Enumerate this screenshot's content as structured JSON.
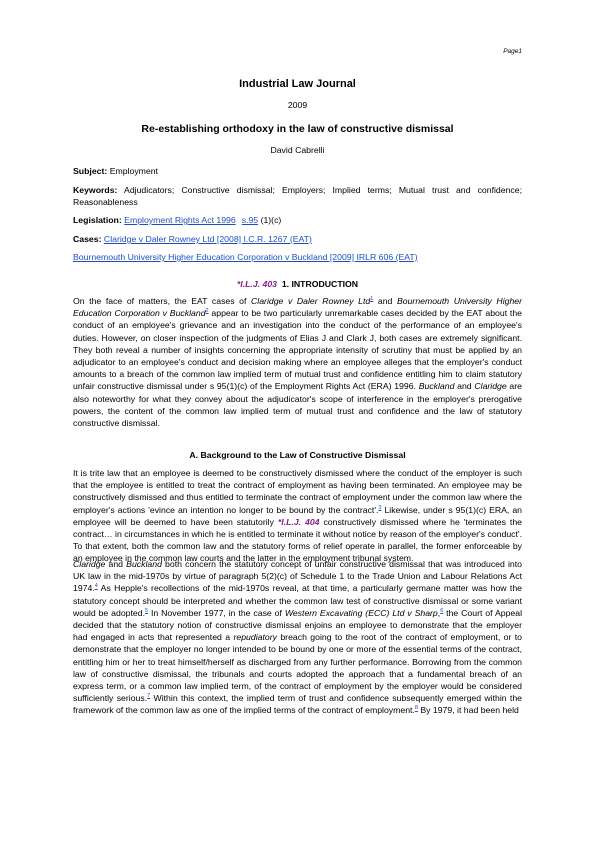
{
  "header": {
    "page": "Page1"
  },
  "title": "Industrial Law Journal",
  "year": "2009",
  "article_title": "Re-establishing orthodoxy in the law of constructive dismissal",
  "author": "David Cabrelli",
  "meta": {
    "subject": {
      "label": "Subject:",
      "value": "Employment"
    },
    "keywords": {
      "label": "Keywords:",
      "value": "Adjudicators; Constructive dismissal; Employers; Implied terms; Mutual trust and confidence; Reasonableness"
    },
    "legislation": {
      "label": "Legislation:",
      "links": [
        "Employment Rights Act 1996",
        "s.95"
      ],
      "value": "(1)(c)"
    },
    "cases": {
      "label": "Cases:",
      "links": [
        "Claridge v Daler Rowney Ltd [2008] I.C.R. 1267 (EAT)",
        "Bournemouth University Higher Education Corporation v Buckland [2009] IRLR 606 (EAT)"
      ]
    }
  },
  "sections": [
    {
      "marker": "*I.L.J. 403",
      "heading": "1. INTRODUCTION",
      "paragraphs": [
        [
          "On the face of matters, the EAT cases of ",
          {
            "text": "Claridge v Daler Rowney Ltd",
            "style": "italic"
          },
          {
            "text": "1",
            "style": "sup"
          },
          " and ",
          {
            "text": "Bournemouth University Higher Education Corporation v Buckland",
            "style": "italic"
          },
          {
            "text": "2",
            "style": "sup"
          },
          " appear to be two particularly unremarkable cases decided by the EAT about the conduct of an employee's grievance and an investigation into the conduct of the performance of an employee's duties. However, on closer inspection of the judgments of Elias J and Clark J, both cases are extremely significant. They both reveal a number of insights concerning the appropriate intensity of scrutiny that must be applied by an adjudicator to an employee's conduct and decision making where an employee alleges that the employer's conduct amounts to a breach of the common law implied term of mutual trust and confidence entitling him to claim statutory unfair constructive dismissal under s 95(1)(c) of the Employment Rights Act (ERA) 1996. ",
          {
            "text": "Buckland",
            "style": "italic"
          },
          " and ",
          {
            "text": "Claridge",
            "style": "italic"
          },
          " are also noteworthy for what they convey about the adjudicator's scope of interference in the employer's prerogative powers, the content of the common law implied term of mutual trust and confidence and the law of statutory constructive dismissal."
        ]
      ]
    },
    {
      "heading": "A. Background to the Law of Constructive Dismissal",
      "paragraphs": [
        [
          "It is trite law that an employee is deemed to be constructively dismissed where the conduct of the employer is such that the employee is entitled to treat the contract of employment as having been terminated. An employee may be constructively dismissed and thus entitled to terminate the contract of employment under the common law where the employer's actions 'evince an intention no longer to be bound by the contract'.",
          {
            "text": "3",
            "style": "sup"
          },
          " Likewise, under s 95(1)(c) ERA, an employee will be deemed to have been statutorily ",
          {
            "text": "*I.L.J. 404",
            "style": "marker"
          },
          " constructively dismissed where he 'terminates the contract… in circumstances in which he is entitled to terminate it without notice by reason of the employer's conduct'. To that extent, both the common law and the statutory forms of relief operate in parallel, the former enforceable by an employee in the common law courts and the latter in the employment tribunal system."
        ],
        [
          {
            "text": "Claridge",
            "style": "italic"
          },
          " and ",
          {
            "text": "Buckland",
            "style": "italic"
          },
          " both concern the statutory concept of unfair constructive dismissal that was introduced into UK law in the mid-1970s by virtue of paragraph 5(2)(c) of Schedule 1 to the Trade Union and Labour Relations Act 1974.",
          {
            "text": "4",
            "style": "sup"
          },
          " As Hepple's recollections of the mid-1970s reveal, at that time, a particularly germane matter was how the statutory concept should be interpreted and whether the common law test of constructive dismissal or some variant would be adopted.",
          {
            "text": "5",
            "style": "sup"
          },
          " In November 1977, in the case of ",
          {
            "text": "Western Excavating (ECC) Ltd v Sharp",
            "style": "italic"
          },
          ",",
          {
            "text": "6",
            "style": "sup"
          },
          " the Court of Appeal decided that the statutory notion of constructive dismissal enjoins an employee to demonstrate that the employer had engaged in acts that represented a ",
          {
            "text": "repudiatory",
            "style": "italic"
          },
          " breach going to the root of the contract of employment, or to demonstrate that the employer no longer intended to be bound by one or more of the essential terms of the contract, entitling him or her to treat himself/herself as discharged from any further performance. Borrowing from the common law of constructive dismissal, the tribunals and courts adopted the approach that a fundamental breach of an express term, or a common law implied term, of the contract of employment by the employer would be considered sufficiently serious.",
          {
            "text": "7",
            "style": "sup"
          },
          " Within this context, the implied term of trust and confidence subsequently emerged within the framework of the common law as one of the implied terms of the contract of employment.",
          {
            "text": "8",
            "style": "sup"
          },
          " By 1979, it had been held"
        ]
      ]
    }
  ]
}
